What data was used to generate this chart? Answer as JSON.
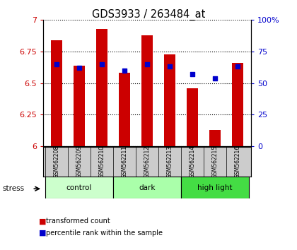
{
  "title": "GDS3933 / 263484_at",
  "samples": [
    "GSM562208",
    "GSM562209",
    "GSM562210",
    "GSM562211",
    "GSM562212",
    "GSM562213",
    "GSM562214",
    "GSM562215",
    "GSM562216"
  ],
  "transformed_counts": [
    6.84,
    6.64,
    6.93,
    6.58,
    6.88,
    6.73,
    6.46,
    6.13,
    6.66
  ],
  "percentile_ranks": [
    65,
    62,
    65,
    60,
    65,
    63,
    57,
    54,
    63
  ],
  "groups": [
    {
      "label": "control",
      "start": 0,
      "end": 3,
      "color": "#ccffcc"
    },
    {
      "label": "dark",
      "start": 3,
      "end": 6,
      "color": "#aaffaa"
    },
    {
      "label": "high light",
      "start": 6,
      "end": 9,
      "color": "#44dd44"
    }
  ],
  "ymin": 6.0,
  "ymax": 7.0,
  "yticks": [
    6.0,
    6.25,
    6.5,
    6.75,
    7.0
  ],
  "ytick_labels": [
    "6",
    "6.25",
    "6.5",
    "6.75",
    "7"
  ],
  "y2min": 0,
  "y2max": 100,
  "y2ticks": [
    0,
    25,
    50,
    75,
    100
  ],
  "y2tick_labels": [
    "0",
    "25",
    "50",
    "75",
    "100%"
  ],
  "bar_color": "#cc0000",
  "dot_color": "#0000cc",
  "bar_width": 0.5,
  "stress_label": "stress",
  "legend_bar_label": "transformed count",
  "legend_dot_label": "percentile rank within the sample",
  "left_tick_color": "#cc0000",
  "right_tick_color": "#0000cc",
  "grid_color": "#000000",
  "bg_labels": "#cccccc"
}
